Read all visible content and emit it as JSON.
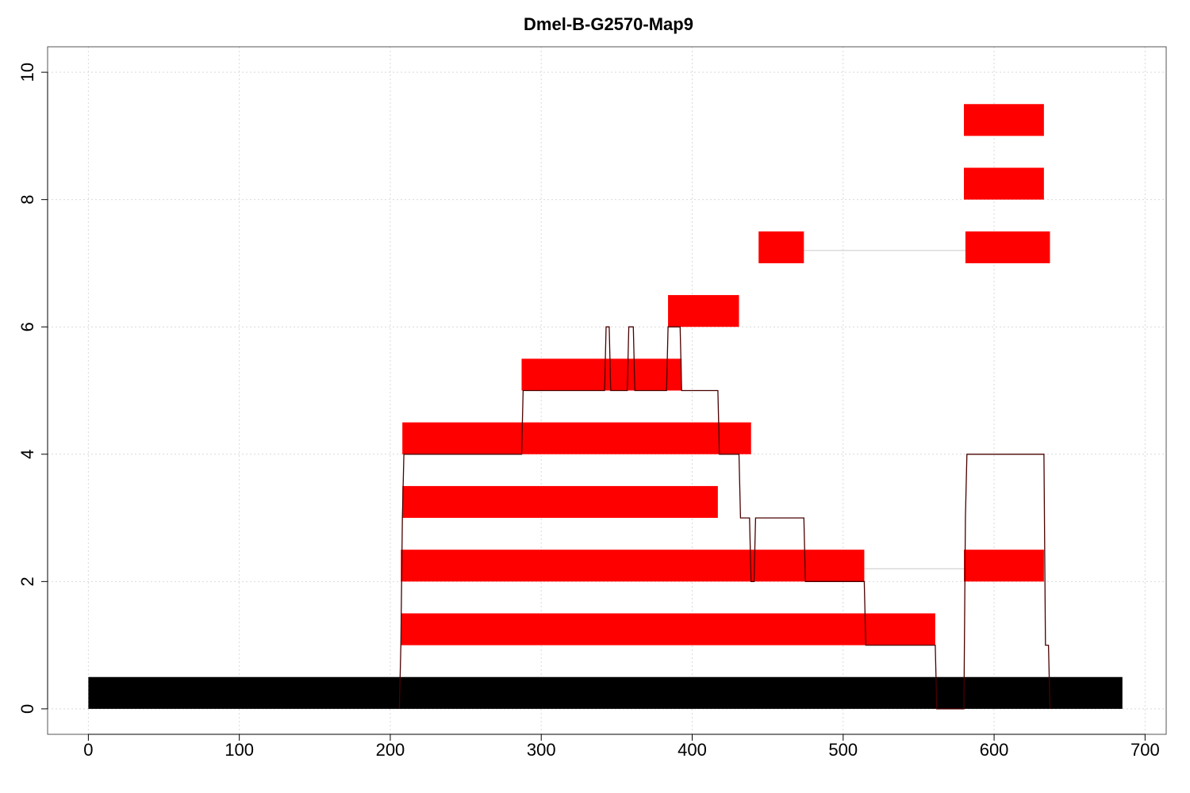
{
  "chart_data": {
    "type": "bar",
    "title": "Dmel-B-G2570-Map9",
    "xlabel": "",
    "ylabel": "",
    "xlim": [
      -27,
      714
    ],
    "ylim": [
      -0.4,
      10.4
    ],
    "x_ticks": [
      0,
      100,
      200,
      300,
      400,
      500,
      600,
      700
    ],
    "y_ticks": [
      0,
      2,
      4,
      6,
      8,
      10
    ],
    "grid": true,
    "colors": {
      "reference": "#000000",
      "segment": "#ff0000",
      "connector": "#d3d3d3",
      "coverage": "#4a0000",
      "grid": "#d9d9d9"
    },
    "reference_bar": {
      "start": 0,
      "end": 685,
      "level": 0
    },
    "segments": [
      {
        "level": 1,
        "start": 207,
        "end": 561
      },
      {
        "level": 2,
        "start": 207,
        "end": 514
      },
      {
        "level": 2,
        "start": 580,
        "end": 633
      },
      {
        "level": 3,
        "start": 208,
        "end": 417
      },
      {
        "level": 4,
        "start": 208,
        "end": 439
      },
      {
        "level": 5,
        "start": 287,
        "end": 393
      },
      {
        "level": 6,
        "start": 384,
        "end": 431
      },
      {
        "level": 7,
        "start": 444,
        "end": 474
      },
      {
        "level": 7,
        "start": 581,
        "end": 637
      },
      {
        "level": 8,
        "start": 580,
        "end": 633
      },
      {
        "level": 9,
        "start": 580,
        "end": 633
      }
    ],
    "connectors": [
      {
        "level": 2,
        "from": 514,
        "to": 580
      },
      {
        "level": 7,
        "from": 474,
        "to": 581
      }
    ],
    "coverage": [
      [
        206,
        0
      ],
      [
        207,
        1
      ],
      [
        208,
        3
      ],
      [
        209,
        4
      ],
      [
        287,
        4
      ],
      [
        288,
        5
      ],
      [
        342,
        5
      ],
      [
        343,
        6
      ],
      [
        345,
        6
      ],
      [
        346,
        5
      ],
      [
        357,
        5
      ],
      [
        358,
        6
      ],
      [
        361,
        6
      ],
      [
        362,
        5
      ],
      [
        383,
        5
      ],
      [
        384,
        6
      ],
      [
        392,
        6
      ],
      [
        393,
        5
      ],
      [
        417,
        5
      ],
      [
        418,
        4
      ],
      [
        431,
        4
      ],
      [
        432,
        3
      ],
      [
        438,
        3
      ],
      [
        439,
        2
      ],
      [
        441,
        2
      ],
      [
        442,
        3
      ],
      [
        474,
        3
      ],
      [
        475,
        2
      ],
      [
        514,
        2
      ],
      [
        515,
        1
      ],
      [
        561,
        1
      ],
      [
        562,
        0
      ],
      [
        580,
        0
      ],
      [
        581,
        3
      ],
      [
        582,
        4
      ],
      [
        633,
        4
      ],
      [
        634,
        1
      ],
      [
        636,
        1
      ],
      [
        637,
        0
      ]
    ]
  }
}
